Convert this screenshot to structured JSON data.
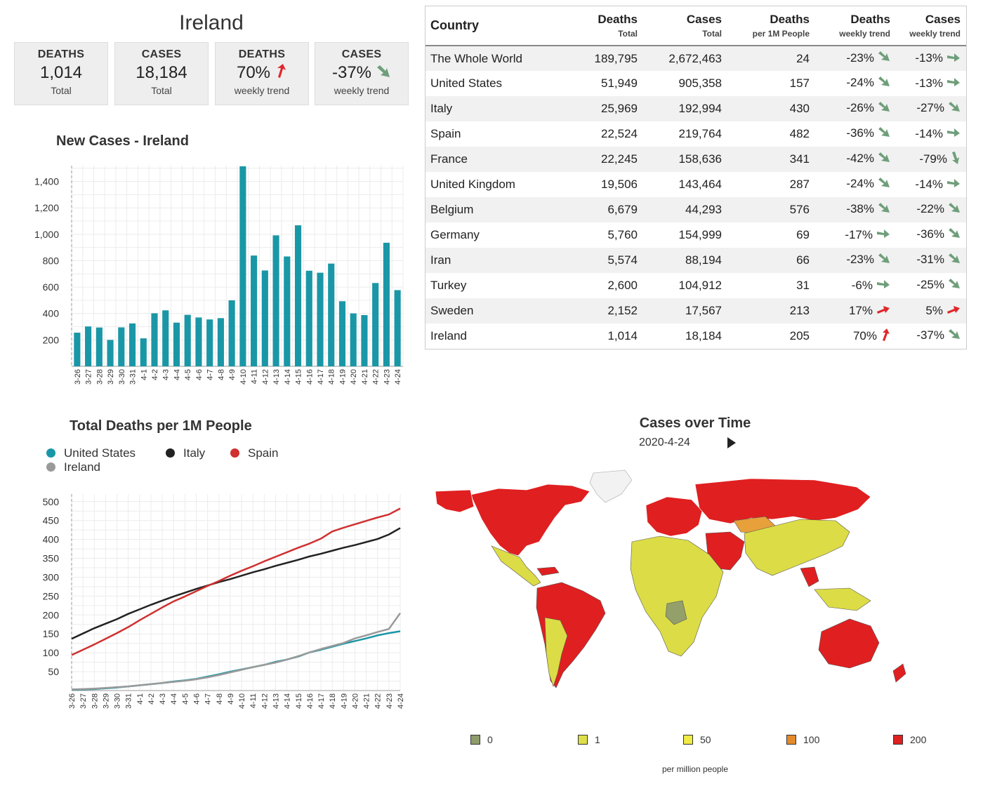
{
  "summary": {
    "country": "Ireland",
    "cards": [
      {
        "label": "DEATHS",
        "value": "1,014",
        "sub": "Total",
        "trend": null
      },
      {
        "label": "CASES",
        "value": "18,184",
        "sub": "Total",
        "trend": null
      },
      {
        "label": "DEATHS",
        "value": "70%",
        "sub": "weekly trend",
        "trend": "up"
      },
      {
        "label": "CASES",
        "value": "-37%",
        "sub": "weekly trend",
        "trend": "down"
      }
    ]
  },
  "colors": {
    "bar": "#1a97a6",
    "trend_up": "#e0262a",
    "trend_down": "#6f9e7a",
    "united_states": "#1a97a6",
    "italy": "#222222",
    "spain": "#d03030",
    "ireland": "#9a9a9a"
  },
  "new_cases_chart": {
    "title": "New Cases - Ireland",
    "chart_data": {
      "type": "bar",
      "categories": [
        "3-26",
        "3-27",
        "3-28",
        "3-29",
        "3-30",
        "3-31",
        "4-1",
        "4-2",
        "4-3",
        "4-4",
        "4-5",
        "4-6",
        "4-7",
        "4-8",
        "4-9",
        "4-10",
        "4-11",
        "4-12",
        "4-13",
        "4-14",
        "4-15",
        "4-16",
        "4-17",
        "4-18",
        "4-19",
        "4-20",
        "4-21",
        "4-22",
        "4-23",
        "4-24"
      ],
      "values": [
        255,
        302,
        294,
        200,
        295,
        325,
        212,
        402,
        424,
        331,
        390,
        370,
        355,
        365,
        500,
        1515,
        839,
        726,
        992,
        832,
        1068,
        724,
        709,
        778,
        493,
        401,
        388,
        631,
        936,
        577
      ],
      "ylim": [
        0,
        1520
      ],
      "yticks": [
        "200",
        "400",
        "600",
        "800",
        "1,000",
        "1,200",
        "1,400"
      ],
      "ytick_values": [
        200,
        400,
        600,
        800,
        1000,
        1200,
        1400
      ]
    }
  },
  "deaths_chart": {
    "title": "Total Deaths per 1M People",
    "chart_data": {
      "type": "line",
      "x": [
        "3-26",
        "3-27",
        "3-28",
        "3-29",
        "3-30",
        "3-31",
        "4-1",
        "4-2",
        "4-3",
        "4-4",
        "4-5",
        "4-6",
        "4-7",
        "4-8",
        "4-9",
        "4-10",
        "4-11",
        "4-12",
        "4-13",
        "4-14",
        "4-15",
        "4-16",
        "4-17",
        "4-18",
        "4-19",
        "4-20",
        "4-21",
        "4-22",
        "4-23",
        "4-24"
      ],
      "ylim": [
        0,
        520
      ],
      "yticks": [
        50,
        100,
        150,
        200,
        250,
        300,
        350,
        400,
        450,
        500
      ],
      "series": [
        {
          "name": "United States",
          "color_key": "united_states",
          "values": [
            2,
            3,
            4,
            6,
            8,
            11,
            14,
            17,
            20,
            24,
            27,
            31,
            37,
            43,
            50,
            56,
            62,
            68,
            76,
            82,
            90,
            101,
            108,
            116,
            124,
            131,
            138,
            146,
            152,
            157
          ]
        },
        {
          "name": "Italy",
          "color_key": "italy",
          "values": [
            137,
            151,
            165,
            177,
            189,
            203,
            215,
            227,
            238,
            249,
            259,
            269,
            278,
            287,
            295,
            304,
            313,
            321,
            330,
            338,
            346,
            355,
            362,
            370,
            378,
            385,
            393,
            401,
            413,
            430
          ]
        },
        {
          "name": "Spain",
          "color_key": "spain",
          "values": [
            94,
            108,
            122,
            137,
            152,
            168,
            186,
            203,
            220,
            236,
            249,
            263,
            277,
            290,
            304,
            317,
            329,
            342,
            354,
            366,
            378,
            389,
            402,
            421,
            431,
            440,
            449,
            458,
            466,
            482
          ]
        },
        {
          "name": "Ireland",
          "color_key": "ireland",
          "values": [
            3,
            4,
            5,
            7,
            9,
            11,
            14,
            17,
            20,
            23,
            26,
            30,
            35,
            41,
            48,
            55,
            62,
            68,
            74,
            82,
            91,
            101,
            110,
            118,
            126,
            138,
            146,
            155,
            163,
            205
          ]
        }
      ]
    }
  },
  "table": {
    "headers": [
      {
        "h1": "Country",
        "h2": ""
      },
      {
        "h1": "Deaths",
        "h2": "Total"
      },
      {
        "h1": "Cases",
        "h2": "Total"
      },
      {
        "h1": "Deaths",
        "h2": "per 1M People"
      },
      {
        "h1": "Deaths",
        "h2": "weekly trend"
      },
      {
        "h1": "Cases",
        "h2": "weekly trend"
      }
    ],
    "rows": [
      {
        "country": "The Whole World",
        "deaths": "189,795",
        "cases": "2,672,463",
        "per1m": "24",
        "dtrend": "-23%",
        "darr": "down",
        "ctrend": "-13%",
        "carr": "flat"
      },
      {
        "country": "United States",
        "deaths": "51,949",
        "cases": "905,358",
        "per1m": "157",
        "dtrend": "-24%",
        "darr": "down",
        "ctrend": "-13%",
        "carr": "flat"
      },
      {
        "country": "Italy",
        "deaths": "25,969",
        "cases": "192,994",
        "per1m": "430",
        "dtrend": "-26%",
        "darr": "down",
        "ctrend": "-27%",
        "carr": "down"
      },
      {
        "country": "Spain",
        "deaths": "22,524",
        "cases": "219,764",
        "per1m": "482",
        "dtrend": "-36%",
        "darr": "down",
        "ctrend": "-14%",
        "carr": "flat"
      },
      {
        "country": "France",
        "deaths": "22,245",
        "cases": "158,636",
        "per1m": "341",
        "dtrend": "-42%",
        "darr": "down",
        "ctrend": "-79%",
        "carr": "steep"
      },
      {
        "country": "United Kingdom",
        "deaths": "19,506",
        "cases": "143,464",
        "per1m": "287",
        "dtrend": "-24%",
        "darr": "down",
        "ctrend": "-14%",
        "carr": "flat"
      },
      {
        "country": "Belgium",
        "deaths": "6,679",
        "cases": "44,293",
        "per1m": "576",
        "dtrend": "-38%",
        "darr": "down",
        "ctrend": "-22%",
        "carr": "down"
      },
      {
        "country": "Germany",
        "deaths": "5,760",
        "cases": "154,999",
        "per1m": "69",
        "dtrend": "-17%",
        "darr": "flat",
        "ctrend": "-36%",
        "carr": "down"
      },
      {
        "country": "Iran",
        "deaths": "5,574",
        "cases": "88,194",
        "per1m": "66",
        "dtrend": "-23%",
        "darr": "down",
        "ctrend": "-31%",
        "carr": "down"
      },
      {
        "country": "Turkey",
        "deaths": "2,600",
        "cases": "104,912",
        "per1m": "31",
        "dtrend": "-6%",
        "darr": "flat",
        "ctrend": "-25%",
        "carr": "down"
      },
      {
        "country": "Sweden",
        "deaths": "2,152",
        "cases": "17,567",
        "per1m": "213",
        "dtrend": "17%",
        "darr": "upflat",
        "ctrend": "5%",
        "carr": "upflat"
      },
      {
        "country": "Ireland",
        "deaths": "1,014",
        "cases": "18,184",
        "per1m": "205",
        "dtrend": "70%",
        "darr": "up",
        "ctrend": "-37%",
        "carr": "down"
      }
    ]
  },
  "map": {
    "title": "Cases over Time",
    "date": "2020-4-24",
    "play_icon": "play-icon",
    "legend": [
      {
        "label": "0",
        "color": "#8f9c6b"
      },
      {
        "label": "1",
        "color": "#dede4a"
      },
      {
        "label": "50",
        "color": "#f0ea45"
      },
      {
        "label": "100",
        "color": "#e58a2a"
      },
      {
        "label": "200",
        "color": "#e0201f"
      }
    ],
    "caption": "per million people",
    "fill_colors": {
      "red": "#e01f20",
      "yellow": "#dcdc46",
      "gray": "#f2f2f2",
      "olive": "#93a06a",
      "orange": "#e8a03a"
    }
  }
}
